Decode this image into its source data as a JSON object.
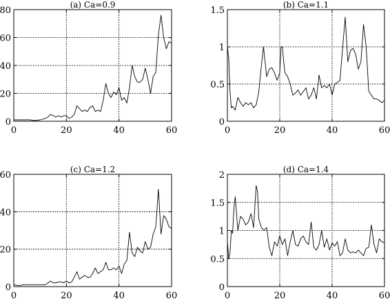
{
  "chart_data": [
    {
      "type": "line",
      "title": "(a) Ca=0.9",
      "xlim": [
        0,
        60
      ],
      "ylim": [
        0,
        80
      ],
      "xticks": [
        0,
        20,
        40,
        60
      ],
      "yticks": [
        0,
        20,
        40,
        60,
        80
      ],
      "grid": true,
      "series": [
        {
          "x": [
            0,
            2,
            4,
            6,
            8,
            10,
            11,
            12,
            13,
            14,
            15,
            16,
            17,
            18,
            19,
            20,
            21,
            22,
            23,
            24,
            25,
            26,
            27,
            28,
            29,
            30,
            31,
            32,
            33,
            34,
            35,
            36,
            37,
            38,
            39,
            40,
            41,
            42,
            43,
            44,
            45,
            46,
            47,
            48,
            49,
            50,
            51,
            52,
            53,
            54,
            55,
            56,
            57,
            58,
            59,
            60
          ],
          "y": [
            1,
            1,
            1,
            1,
            0.5,
            1,
            1.5,
            2,
            3,
            5,
            4,
            3,
            4,
            3,
            4,
            4,
            2,
            3,
            5,
            11,
            9,
            7,
            8,
            7,
            10,
            11,
            7,
            8,
            7,
            15,
            27,
            20,
            17,
            21,
            19,
            24,
            15,
            17,
            13,
            24,
            40,
            32,
            28,
            28,
            30,
            38,
            30,
            20,
            32,
            35,
            62,
            76,
            60,
            52,
            57,
            56
          ]
        }
      ]
    },
    {
      "type": "line",
      "title": "(b) Ca=1.1",
      "xlim": [
        0,
        60
      ],
      "ylim": [
        0,
        1.5
      ],
      "xticks": [
        0,
        20,
        40,
        60
      ],
      "yticks": [
        0,
        0.5,
        1,
        1.5
      ],
      "grid": true,
      "series": [
        {
          "x": [
            0,
            0.5,
            1,
            1.5,
            2,
            3,
            4,
            5,
            6,
            7,
            8,
            9,
            10,
            11,
            12,
            13,
            13.8,
            15,
            16,
            17,
            18,
            19,
            20,
            20.5,
            21,
            21.5,
            22,
            23,
            24,
            25,
            26,
            27,
            28,
            29,
            30,
            31,
            32,
            33,
            34,
            35,
            36,
            37,
            38,
            39,
            40,
            41,
            42,
            43,
            44,
            45,
            46,
            47,
            48,
            49,
            50,
            51,
            52,
            53,
            54,
            55,
            56,
            57,
            58,
            59,
            60
          ],
          "y": [
            1.0,
            0.85,
            0.4,
            0.18,
            0.2,
            0.15,
            0.32,
            0.25,
            0.2,
            0.25,
            0.22,
            0.25,
            0.18,
            0.22,
            0.4,
            0.75,
            1.0,
            0.6,
            0.7,
            0.72,
            0.65,
            0.55,
            0.65,
            1.0,
            1.0,
            0.8,
            0.65,
            0.6,
            0.5,
            0.35,
            0.38,
            0.42,
            0.35,
            0.4,
            0.45,
            0.3,
            0.35,
            0.45,
            0.3,
            0.62,
            0.45,
            0.48,
            0.45,
            0.5,
            0.35,
            0.5,
            0.52,
            0.55,
            0.98,
            1.4,
            0.8,
            0.95,
            0.98,
            0.9,
            0.7,
            0.8,
            1.3,
            1.0,
            0.4,
            0.35,
            0.3,
            0.3,
            0.28,
            0.25,
            0.28
          ]
        }
      ]
    },
    {
      "type": "line",
      "title": "(c) Ca=1.2",
      "xlim": [
        0,
        60
      ],
      "ylim": [
        0,
        60
      ],
      "xticks": [
        0,
        20,
        40,
        60
      ],
      "yticks": [
        0,
        20,
        40,
        60
      ],
      "grid": true,
      "series": [
        {
          "x": [
            0,
            2,
            4,
            6,
            8,
            10,
            12,
            13,
            14,
            15,
            16,
            17,
            18,
            19,
            20,
            21,
            22,
            23,
            24,
            25,
            26,
            27,
            28,
            29,
            30,
            31,
            32,
            33,
            34,
            35,
            36,
            37,
            38,
            39,
            40,
            41,
            42,
            43,
            44,
            45,
            46,
            47,
            48,
            49,
            50,
            51,
            52,
            53,
            54,
            55,
            56,
            57,
            58,
            59,
            60
          ],
          "y": [
            1,
            0.5,
            1,
            1,
            1,
            1,
            1,
            2,
            3,
            2,
            2,
            2.5,
            2.5,
            2,
            3,
            2,
            2.5,
            5,
            8,
            4,
            5,
            6,
            5,
            5,
            7,
            10,
            7,
            8,
            9,
            13,
            9,
            9,
            10,
            9,
            11,
            7,
            12,
            14,
            29,
            18,
            16,
            21,
            19,
            18,
            24,
            20,
            21,
            28,
            32,
            52,
            28,
            38,
            36,
            32,
            31
          ]
        }
      ]
    },
    {
      "type": "line",
      "title": "(d) Ca=1.4",
      "xlim": [
        0,
        60
      ],
      "ylim": [
        0,
        2
      ],
      "xticks": [
        0,
        20,
        40,
        60
      ],
      "yticks": [
        0,
        0.5,
        1,
        1.5,
        2
      ],
      "grid": true,
      "series": [
        {
          "x": [
            0,
            0.5,
            1,
            1.5,
            2,
            2.5,
            3,
            4,
            5,
            6,
            7,
            8,
            9,
            10,
            11,
            11.5,
            12,
            13,
            14,
            15,
            16,
            17,
            18,
            19,
            20,
            21,
            22,
            23,
            24,
            25,
            26,
            27,
            28,
            29,
            30,
            31,
            32,
            33,
            34,
            35,
            36,
            37,
            38,
            39,
            40,
            41,
            42,
            43,
            44,
            45,
            46,
            47,
            48,
            49,
            50,
            51,
            52,
            53,
            54,
            55,
            56,
            57,
            58,
            59,
            60
          ],
          "y": [
            0.8,
            0.5,
            0.6,
            1.0,
            0.95,
            1.4,
            1.6,
            1.0,
            1.25,
            1.2,
            1.1,
            1.15,
            1.3,
            1.05,
            1.8,
            1.7,
            1.2,
            1.05,
            1.0,
            1.05,
            0.7,
            0.55,
            0.8,
            0.72,
            0.9,
            0.75,
            0.85,
            0.55,
            0.8,
            1.0,
            0.75,
            0.72,
            0.85,
            0.9,
            0.8,
            0.75,
            1.15,
            0.7,
            0.65,
            0.75,
            1.0,
            0.7,
            0.85,
            0.65,
            0.78,
            0.72,
            0.8,
            0.55,
            0.6,
            0.85,
            0.65,
            0.6,
            0.62,
            0.6,
            0.65,
            0.6,
            0.55,
            0.68,
            0.7,
            1.1,
            0.75,
            0.6,
            0.85,
            0.8,
            0.78
          ]
        }
      ]
    }
  ]
}
